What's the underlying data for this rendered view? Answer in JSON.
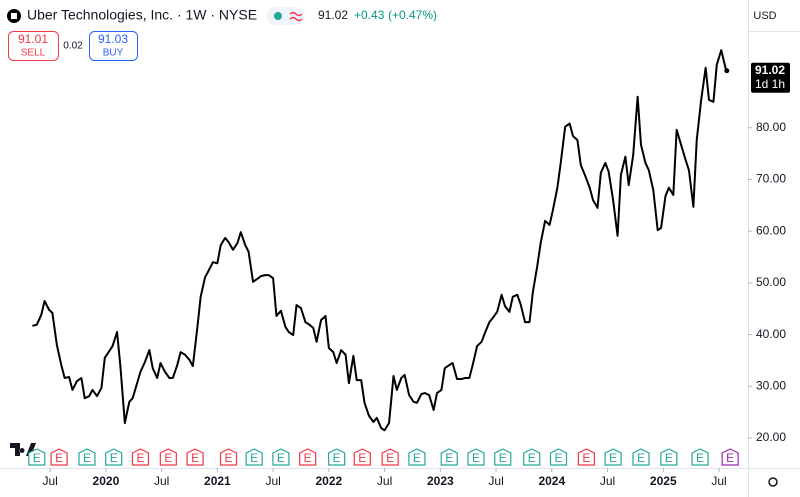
{
  "header": {
    "title": "Uber Technologies, Inc. · 1W · NYSE",
    "price": "91.02",
    "change": "+0.43",
    "change_pct": "(+0.47%)",
    "sell_price": "91.01",
    "sell_label": "SELL",
    "spread": "0.02",
    "buy_price": "91.03",
    "buy_label": "BUY",
    "currency": "USD"
  },
  "chart_data": {
    "type": "line",
    "color": "#000000",
    "x": [
      2019.34,
      2019.38,
      2019.42,
      2019.45,
      2019.49,
      2019.52,
      2019.56,
      2019.6,
      2019.63,
      2019.67,
      2019.7,
      2019.74,
      2019.78,
      2019.81,
      2019.85,
      2019.88,
      2019.92,
      2019.96,
      2019.99,
      2020.03,
      2020.06,
      2020.1,
      2020.13,
      2020.17,
      2020.21,
      2020.24,
      2020.28,
      2020.31,
      2020.35,
      2020.39,
      2020.42,
      2020.46,
      2020.49,
      2020.53,
      2020.57,
      2020.6,
      2020.64,
      2020.67,
      2020.71,
      2020.75,
      2020.78,
      2020.82,
      2020.85,
      2020.89,
      2020.92,
      2020.96,
      2021.0,
      2021.03,
      2021.07,
      2021.1,
      2021.14,
      2021.18,
      2021.21,
      2021.25,
      2021.28,
      2021.32,
      2021.36,
      2021.39,
      2021.43,
      2021.46,
      2021.5,
      2021.53,
      2021.57,
      2021.61,
      2021.64,
      2021.68,
      2021.71,
      2021.75,
      2021.79,
      2021.82,
      2021.86,
      2021.89,
      2021.93,
      2021.97,
      2022.0,
      2022.04,
      2022.07,
      2022.11,
      2022.15,
      2022.18,
      2022.22,
      2022.25,
      2022.29,
      2022.32,
      2022.36,
      2022.4,
      2022.43,
      2022.47,
      2022.5,
      2022.54,
      2022.58,
      2022.61,
      2022.65,
      2022.68,
      2022.72,
      2022.76,
      2022.79,
      2022.83,
      2022.86,
      2022.9,
      2022.94,
      2022.97,
      2023.01,
      2023.04,
      2023.08,
      2023.11,
      2023.15,
      2023.19,
      2023.22,
      2023.26,
      2023.29,
      2023.33,
      2023.37,
      2023.4,
      2023.44,
      2023.47,
      2023.51,
      2023.55,
      2023.58,
      2023.62,
      2023.65,
      2023.69,
      2023.72,
      2023.76,
      2023.8,
      2023.83,
      2023.87,
      2023.9,
      2023.94,
      2023.98,
      2024.01,
      2024.05,
      2024.08,
      2024.12,
      2024.16,
      2024.19,
      2024.23,
      2024.26,
      2024.3,
      2024.34,
      2024.37,
      2024.41,
      2024.44,
      2024.48,
      2024.51,
      2024.55,
      2024.59,
      2024.62,
      2024.66,
      2024.69,
      2024.73,
      2024.77,
      2024.8,
      2024.84,
      2024.87,
      2024.91,
      2024.95,
      2024.98,
      2025.02,
      2025.05,
      2025.09,
      2025.12,
      2025.16,
      2025.2,
      2025.23,
      2025.27,
      2025.3,
      2025.34,
      2025.38,
      2025.41,
      2025.45,
      2025.48,
      2025.52,
      2025.56,
      2025.57
    ],
    "values": [
      41.7,
      41.9,
      43.8,
      46.5,
      44.8,
      44.2,
      38.0,
      34.1,
      31.6,
      31.8,
      29.3,
      31.0,
      31.6,
      27.7,
      28.1,
      29.3,
      28.1,
      29.7,
      35.5,
      36.8,
      37.8,
      40.5,
      33.9,
      22.9,
      27.0,
      27.7,
      30.6,
      32.8,
      34.7,
      37.0,
      33.5,
      31.6,
      34.5,
      32.8,
      31.6,
      31.6,
      34.1,
      36.6,
      36.1,
      35.1,
      33.9,
      41.3,
      47.3,
      51.1,
      52.3,
      54.0,
      53.8,
      57.3,
      58.7,
      57.9,
      56.4,
      57.7,
      59.8,
      57.3,
      56.0,
      50.2,
      50.8,
      51.3,
      51.5,
      51.5,
      50.9,
      43.6,
      44.6,
      41.5,
      40.5,
      39.9,
      45.7,
      45.1,
      42.4,
      42.0,
      41.3,
      38.6,
      42.8,
      43.6,
      37.4,
      36.6,
      34.5,
      37.0,
      36.1,
      30.6,
      35.9,
      31.2,
      31.2,
      26.8,
      24.3,
      23.1,
      23.9,
      21.9,
      21.5,
      22.9,
      32.0,
      29.3,
      31.6,
      32.2,
      28.3,
      27.0,
      26.8,
      28.5,
      28.7,
      28.3,
      25.4,
      28.7,
      29.3,
      33.5,
      34.1,
      34.5,
      31.4,
      31.4,
      31.6,
      31.6,
      34.1,
      37.8,
      38.6,
      40.3,
      42.4,
      43.2,
      44.4,
      47.7,
      45.5,
      44.4,
      47.3,
      47.7,
      45.9,
      42.4,
      42.4,
      48.2,
      53.3,
      57.7,
      62.0,
      61.2,
      64.1,
      68.4,
      73.2,
      80.2,
      80.8,
      78.4,
      77.6,
      72.8,
      70.7,
      68.4,
      66.0,
      64.5,
      71.3,
      73.2,
      71.5,
      66.0,
      59.1,
      70.9,
      74.4,
      68.9,
      74.7,
      86.0,
      76.7,
      73.2,
      71.8,
      68.0,
      60.2,
      60.6,
      66.8,
      68.4,
      67.0,
      79.6,
      76.7,
      73.8,
      71.8,
      64.7,
      77.6,
      85.4,
      91.6,
      85.4,
      85.0,
      92.2,
      95.0,
      91.4,
      91.02
    ],
    "last_countdown": "1d 1h",
    "xlim": [
      2019.05,
      2025.76
    ],
    "xticks": [
      {
        "value": 2019.5,
        "label": "Jul"
      },
      2020,
      {
        "value": 2020.5,
        "label": "Jul"
      },
      2021,
      {
        "value": 2021.5,
        "label": "Jul"
      },
      2022,
      {
        "value": 2022.5,
        "label": "Jul"
      },
      2023,
      {
        "value": 2023.5,
        "label": "Jul"
      },
      2024,
      {
        "value": 2024.5,
        "label": "Jul"
      },
      2025,
      {
        "value": 2025.5,
        "label": "Jul"
      }
    ],
    "ylim": [
      14.2,
      104.7
    ],
    "yticks": [
      {
        "value": 20,
        "label": "20.00"
      },
      {
        "value": 30,
        "label": "30.00"
      },
      {
        "value": 40,
        "label": "40.00"
      },
      {
        "value": 50,
        "label": "50.00"
      },
      {
        "value": 60,
        "label": "60.00"
      },
      {
        "value": 70,
        "label": "70.00"
      },
      {
        "value": 80,
        "label": "80.00"
      }
    ],
    "grid": false,
    "earnings": [
      {
        "x": 2019.38,
        "label": "E",
        "color": "#26a69a"
      },
      {
        "x": 2019.58,
        "label": "E",
        "color": "#f23645"
      },
      {
        "x": 2019.83,
        "label": "E",
        "color": "#26a69a"
      },
      {
        "x": 2020.07,
        "label": "E",
        "color": "#26a69a"
      },
      {
        "x": 2020.31,
        "label": "E",
        "color": "#f23645"
      },
      {
        "x": 2020.56,
        "label": "E",
        "color": "#f23645"
      },
      {
        "x": 2020.8,
        "label": "E",
        "color": "#f23645"
      },
      {
        "x": 2021.1,
        "label": "E",
        "color": "#f23645"
      },
      {
        "x": 2021.33,
        "label": "E",
        "color": "#26a69a"
      },
      {
        "x": 2021.57,
        "label": "E",
        "color": "#26a69a"
      },
      {
        "x": 2021.81,
        "label": "E",
        "color": "#f23645"
      },
      {
        "x": 2022.07,
        "label": "E",
        "color": "#26a69a"
      },
      {
        "x": 2022.3,
        "label": "E",
        "color": "#f23645"
      },
      {
        "x": 2022.55,
        "label": "E",
        "color": "#f23645"
      },
      {
        "x": 2022.79,
        "label": "E",
        "color": "#26a69a"
      },
      {
        "x": 2023.08,
        "label": "E",
        "color": "#26a69a"
      },
      {
        "x": 2023.32,
        "label": "E",
        "color": "#26a69a"
      },
      {
        "x": 2023.56,
        "label": "E",
        "color": "#26a69a"
      },
      {
        "x": 2023.82,
        "label": "E",
        "color": "#26a69a"
      },
      {
        "x": 2024.06,
        "label": "E",
        "color": "#26a69a"
      },
      {
        "x": 2024.31,
        "label": "E",
        "color": "#f23645"
      },
      {
        "x": 2024.55,
        "label": "E",
        "color": "#26a69a"
      },
      {
        "x": 2024.8,
        "label": "E",
        "color": "#26a69a"
      },
      {
        "x": 2025.05,
        "label": "E",
        "color": "#26a69a"
      },
      {
        "x": 2025.33,
        "label": "E",
        "color": "#26a69a"
      },
      {
        "x": 2025.6,
        "label": "E",
        "color": "#9c27b0"
      }
    ]
  }
}
